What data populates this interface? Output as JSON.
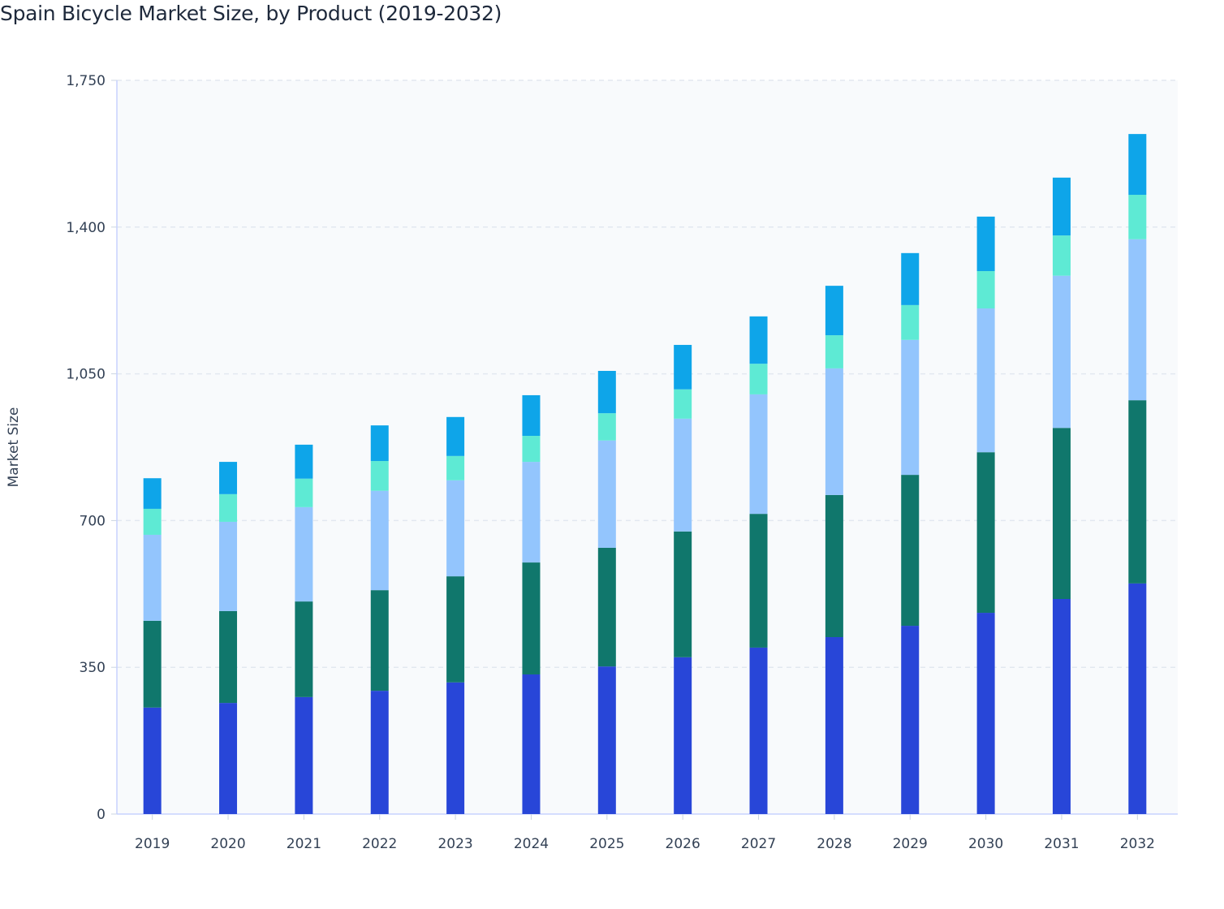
{
  "chart_data": {
    "type": "bar",
    "stacked": true,
    "title": "Spain Bicycle Market Size, by Product (2019-2032)",
    "xlabel": "",
    "ylabel": "Market Size",
    "ylim": [
      0,
      1750
    ],
    "yticks": [
      0,
      350,
      700,
      1050,
      1400,
      1750
    ],
    "ytick_labels": [
      "0",
      "350",
      "700",
      "1,050",
      "1,400",
      "1,750"
    ],
    "grid": "horizontal dashed",
    "legend": "none",
    "categories": [
      "2019",
      "2020",
      "2021",
      "2022",
      "2023",
      "2024",
      "2025",
      "2026",
      "2027",
      "2028",
      "2029",
      "2030",
      "2031",
      "2032"
    ],
    "series": [
      {
        "color": "#2846d8",
        "values": [
          254,
          265,
          279,
          294,
          314,
          333,
          352,
          374,
          397,
          422,
          449,
          480,
          513,
          550
        ]
      },
      {
        "color": "#10776c",
        "values": [
          207,
          219,
          228,
          240,
          253,
          267,
          283,
          300,
          319,
          339,
          360,
          383,
          408,
          437
        ]
      },
      {
        "color": "#93c5fd",
        "values": [
          205,
          213,
          225,
          237,
          229,
          240,
          256,
          269,
          285,
          302,
          322,
          343,
          363,
          384
        ]
      },
      {
        "color": "#5eead4",
        "values": [
          62,
          66,
          68,
          71,
          58,
          62,
          65,
          70,
          73,
          79,
          83,
          89,
          96,
          106
        ]
      },
      {
        "color": "#0ea5e9",
        "values": [
          73,
          77,
          81,
          85,
          93,
          97,
          101,
          106,
          113,
          118,
          124,
          130,
          138,
          145
        ]
      }
    ]
  }
}
